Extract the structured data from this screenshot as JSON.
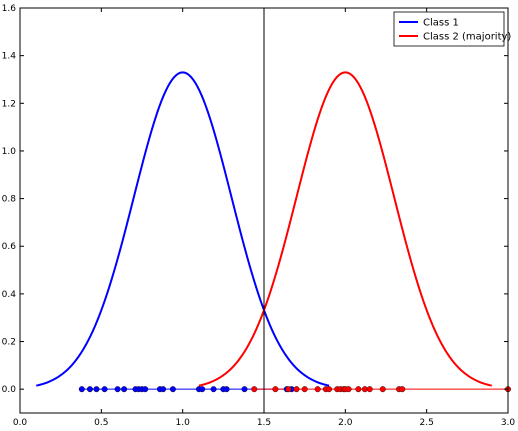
{
  "chart_data": {
    "type": "line",
    "xlim": [
      0.0,
      3.0
    ],
    "ylim": [
      -0.1,
      1.6
    ],
    "x_ticks": [
      "0.0",
      "0.5",
      "1.0",
      "1.5",
      "2.0",
      "2.5",
      "3.0"
    ],
    "y_ticks": [
      "0.0",
      "0.2",
      "0.4",
      "0.6",
      "0.8",
      "1.0",
      "1.2",
      "1.4",
      "1.6"
    ],
    "grid": false,
    "legend_position": "top-right",
    "decision_boundary_x": 1.5,
    "series": [
      {
        "name": "Class 1",
        "color": "#0000ff",
        "curve": {
          "mean": 1.0,
          "std": 0.3,
          "x_range": [
            0.1,
            1.9
          ]
        },
        "points_x": [
          0.38,
          0.43,
          0.47,
          0.52,
          0.6,
          0.64,
          0.71,
          0.73,
          0.75,
          0.77,
          0.86,
          0.88,
          0.94,
          1.1,
          1.12,
          1.19,
          1.25,
          1.27,
          1.38,
          1.64,
          1.67
        ],
        "points_y": 0.0
      },
      {
        "name": "Class 2 (majority)",
        "color": "#ff0000",
        "curve": {
          "mean": 2.0,
          "std": 0.3,
          "x_range": [
            1.1,
            2.9
          ]
        },
        "points_x": [
          1.44,
          1.57,
          1.65,
          1.7,
          1.75,
          1.83,
          1.88,
          1.9,
          1.95,
          1.97,
          1.99,
          2.0,
          2.02,
          2.08,
          2.12,
          2.15,
          2.23,
          2.33,
          2.35,
          3.0
        ],
        "points_y": 0.0
      }
    ]
  }
}
